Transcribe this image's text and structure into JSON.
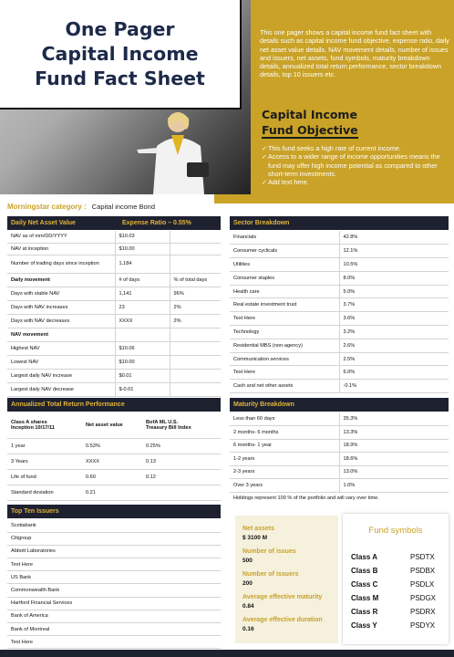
{
  "header": {
    "title_lines": [
      "One Pager",
      "Capital Income",
      "Fund Fact Sheet"
    ],
    "intro": "This one pager shows a capital income fund fact sheet with details such as capital income fund objective, expense ratio, daily net asset value details, NAV movement details, number of issues and issuers, net assets, fund symbols, maturity breakdown details, annualized total return performance, sector breakdown details, top 10 issuers etc.",
    "objective_title_lines": [
      "Capital Income",
      "Fund Objective"
    ],
    "objective_items": [
      "This fund seeks a high rate of current income.",
      "Access to a wider range of income opportunities means the fund may offer high income potential as compared to other short-term investments.",
      "Add text here."
    ]
  },
  "morningstar": {
    "label": "Morningstar  category :",
    "value": "Capital income Bond"
  },
  "daily_nav": {
    "header_left": "Daily Net Asset Value",
    "header_right": "Expense Ratio – 0.55%",
    "rows": [
      [
        "NAV as of mm/DD/YYYY",
        "$10.03",
        ""
      ],
      [
        "NAV at inception",
        "$10.00",
        ""
      ],
      [
        "Number of trading days since inception",
        "1,184",
        ""
      ],
      [
        "Daily movement",
        "# of days",
        "% of total days"
      ],
      [
        "Days with stable NAV",
        "1,141",
        "96%"
      ],
      [
        "Days with NAV increases",
        "23",
        "2%"
      ],
      [
        "Days with NAV decreases",
        "XXXX",
        "2%"
      ],
      [
        "NAV movement",
        "",
        ""
      ],
      [
        "Highest NAV",
        "$10.06",
        ""
      ],
      [
        "Lowest NAV",
        "$10.00",
        ""
      ],
      [
        "Largest daily NAV increase",
        "$0.01",
        ""
      ],
      [
        "Largest daily NAV decrease",
        "$-0.01",
        ""
      ]
    ]
  },
  "sector": {
    "header": "Sector Breakdown",
    "rows": [
      [
        "Financials",
        "42.8%"
      ],
      [
        "Consumer cyclicals",
        "12.1%"
      ],
      [
        "Utilities",
        "10.5%"
      ],
      [
        "Consumer staples",
        "8.0%"
      ],
      [
        "Health care",
        "5.0%"
      ],
      [
        "Real estate investment trust",
        "3.7%"
      ],
      [
        "Text Here",
        "3.6%"
      ],
      [
        "Technology",
        "3.2%"
      ],
      [
        "Residential MBS (non-agency)",
        "2.6%"
      ],
      [
        "Communication services",
        "2.5%"
      ],
      [
        "Text Here",
        "6.0%"
      ],
      [
        "Cash and net other assets",
        "-0.1%"
      ]
    ]
  },
  "annualized": {
    "header": "Annualized Total Return Performance",
    "col1": "Class A  shares\nInception 10/17/11",
    "col2": "Net asset value",
    "col3": "BofA ML U.S.\nTreasury Bill Index",
    "rows": [
      [
        "1 year",
        "0.53%",
        "0.25%"
      ],
      [
        "3 Years",
        "XXXX",
        "0.13"
      ],
      [
        "Life of fund",
        "0.60",
        "0.12"
      ],
      [
        "Standard deviation",
        "0.21",
        ""
      ]
    ]
  },
  "maturity": {
    "header": "Maturity Breakdown",
    "rows": [
      [
        "Less than 60 days",
        "35.3%"
      ],
      [
        "2 months- 6 months",
        "13.3%"
      ],
      [
        "6 months- 1 year",
        "18.9%"
      ],
      [
        "1-2 years",
        "18.6%"
      ],
      [
        "2-3 years",
        "13.0%"
      ],
      [
        "Over 3 years",
        "1.0%"
      ]
    ],
    "note": "Holdings represent 100 % of the portfolio and will vary over time."
  },
  "issuers": {
    "header": "Top Ten Issuers",
    "rows": [
      "Scotiabank",
      "Citigroup",
      "Abbott Laboratories",
      "Text Here",
      "US Bank",
      "Commonwealth Bank",
      "Hartford Financial Services",
      "Bank of America",
      "Bank of Montreal",
      "Text Here"
    ]
  },
  "fund_stats": [
    {
      "label": "Net assets",
      "value": "$ 3100 M"
    },
    {
      "label": "Number of issues",
      "value": "500"
    },
    {
      "label": "Number of issuers",
      "value": "200"
    },
    {
      "label": "Average effective maturity",
      "value": "0.84"
    },
    {
      "label": "Average effective duration",
      "value": "0.16"
    }
  ],
  "fund_symbols": {
    "title": "Fund symbols",
    "rows": [
      [
        "Class A",
        "PSDTX"
      ],
      [
        "Class B",
        "PSDBX"
      ],
      [
        "Class C",
        "PSDLX"
      ],
      [
        "Class M",
        "PSDGX"
      ],
      [
        "Class R",
        "PSDRX"
      ],
      [
        "Class Y",
        "PSDYX"
      ]
    ]
  },
  "colors": {
    "gold": "#c9a227",
    "navy": "#1e2130",
    "header_text": "#e2b43a",
    "title": "#1d2a4a"
  }
}
